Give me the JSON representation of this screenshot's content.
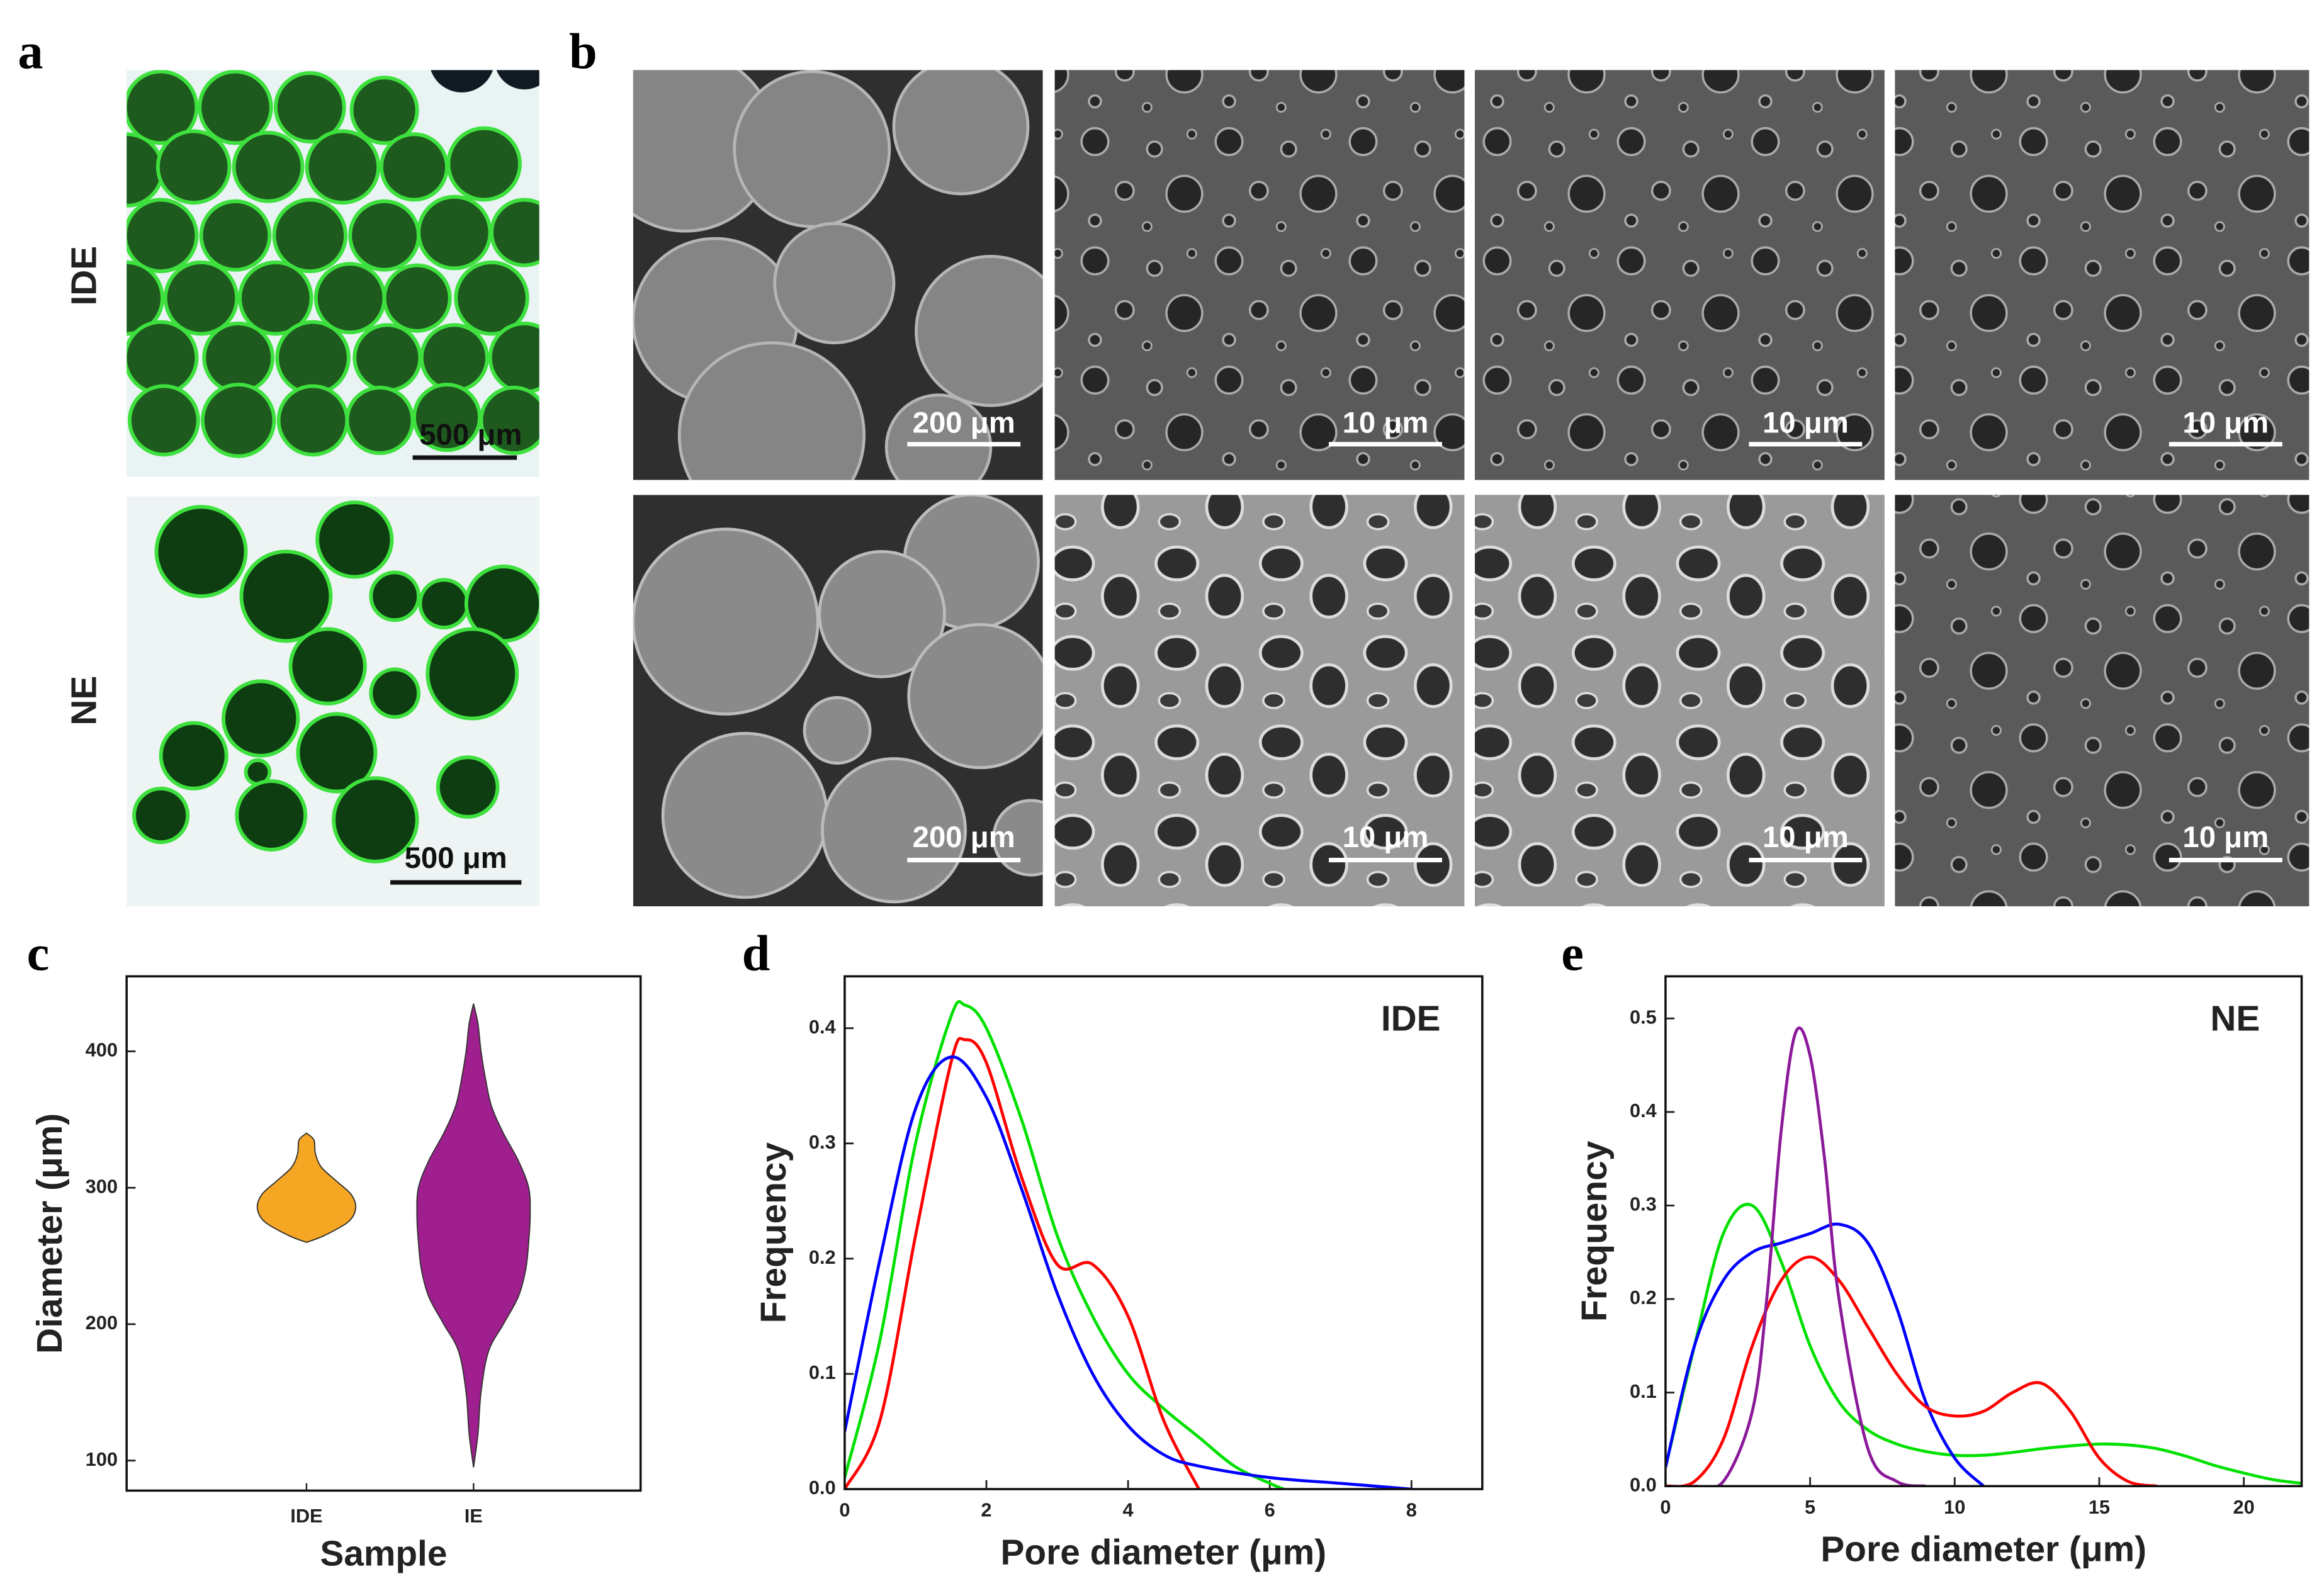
{
  "panels": {
    "a": {
      "label": "a",
      "rows": [
        "IDE",
        "NE"
      ],
      "scale_bars": [
        "500 μm",
        "500 μm"
      ]
    },
    "b": {
      "label": "b",
      "scale_bars": [
        [
          "200 μm",
          "10 μm",
          "10 μm",
          "10 μm"
        ],
        [
          "200 μm",
          "10 μm",
          "10 μm",
          "10 μm"
        ]
      ]
    }
  },
  "chart_data": [
    {
      "type": "violin",
      "panel": "c",
      "xlabel": "Sample",
      "ylabel": "Diameter (μm)",
      "categories": [
        "IDE",
        "IE"
      ],
      "violins": [
        {
          "color": "#f5a623",
          "y": [
            260,
            265,
            275,
            285,
            295,
            305,
            315,
            325,
            335,
            340
          ],
          "density": [
            0,
            0.12,
            0.28,
            0.33,
            0.3,
            0.2,
            0.1,
            0.06,
            0.05,
            0
          ]
        },
        {
          "color": "#a01f8f",
          "y": [
            95,
            120,
            150,
            180,
            200,
            220,
            240,
            260,
            280,
            300,
            320,
            340,
            360,
            380,
            400,
            420,
            435
          ],
          "density": [
            0,
            0.03,
            0.05,
            0.1,
            0.2,
            0.3,
            0.35,
            0.37,
            0.38,
            0.37,
            0.3,
            0.2,
            0.12,
            0.08,
            0.05,
            0.03,
            0
          ]
        }
      ],
      "ylim": [
        78,
        455
      ],
      "yticks": [
        100,
        200,
        300,
        400
      ]
    },
    {
      "type": "line",
      "panel": "d",
      "annotation": "IDE",
      "xlabel": "Pore diameter (μm)",
      "ylabel": "Frequency",
      "series": [
        {
          "color": "#00e000",
          "x": [
            0,
            0.5,
            1,
            1.5,
            1.7,
            2,
            2.5,
            3,
            3.5,
            4,
            4.5,
            5,
            5.5,
            6,
            6.2
          ],
          "values": [
            0.01,
            0.13,
            0.3,
            0.41,
            0.42,
            0.4,
            0.32,
            0.22,
            0.15,
            0.1,
            0.07,
            0.045,
            0.02,
            0.005,
            0
          ]
        },
        {
          "color": "#ff0000",
          "x": [
            0,
            0.5,
            1,
            1.5,
            1.7,
            2,
            2.5,
            3,
            3.5,
            4,
            4.5,
            5
          ],
          "values": [
            0,
            0.06,
            0.22,
            0.37,
            0.39,
            0.37,
            0.27,
            0.195,
            0.195,
            0.15,
            0.06,
            0
          ]
        },
        {
          "color": "#0000ff",
          "x": [
            0,
            0.5,
            1,
            1.5,
            2,
            2.5,
            3,
            3.5,
            4,
            4.5,
            5,
            6,
            7,
            8
          ],
          "values": [
            0.05,
            0.2,
            0.33,
            0.375,
            0.34,
            0.26,
            0.17,
            0.1,
            0.055,
            0.03,
            0.02,
            0.01,
            0.005,
            0
          ]
        }
      ],
      "xlim": [
        0,
        9
      ],
      "xticks": [
        0,
        2,
        4,
        6,
        8
      ],
      "ylim": [
        0,
        0.445
      ],
      "yticks": [
        {
          "value": 0,
          "label": "0.0"
        },
        0.1,
        0.2,
        0.3,
        0.4
      ]
    },
    {
      "type": "line",
      "panel": "e",
      "annotation": "NE",
      "xlabel": "Pore diameter (μm)",
      "ylabel": "Frequency",
      "series": [
        {
          "color": "#00e000",
          "x": [
            0,
            1,
            2,
            3,
            4,
            5,
            6,
            7,
            8,
            9,
            10,
            11,
            12,
            13,
            14,
            15,
            16,
            17,
            18,
            19,
            20,
            21,
            22
          ],
          "values": [
            0.02,
            0.15,
            0.27,
            0.3,
            0.24,
            0.15,
            0.09,
            0.06,
            0.045,
            0.037,
            0.033,
            0.033,
            0.036,
            0.04,
            0.043,
            0.045,
            0.044,
            0.04,
            0.032,
            0.022,
            0.014,
            0.007,
            0.003
          ]
        },
        {
          "color": "#0000ff",
          "x": [
            0,
            1,
            2,
            3,
            4,
            5,
            6,
            7,
            8,
            9,
            10,
            11
          ],
          "values": [
            0.02,
            0.15,
            0.22,
            0.25,
            0.26,
            0.27,
            0.28,
            0.26,
            0.19,
            0.09,
            0.03,
            0
          ]
        },
        {
          "color": "#ff0000",
          "x": [
            0,
            1,
            2,
            3,
            4,
            5,
            6,
            7,
            8,
            9,
            10,
            11,
            12,
            13,
            14,
            15,
            16,
            17
          ],
          "values": [
            0,
            0.005,
            0.05,
            0.15,
            0.22,
            0.245,
            0.22,
            0.17,
            0.12,
            0.085,
            0.075,
            0.08,
            0.1,
            0.11,
            0.08,
            0.03,
            0.005,
            0
          ]
        },
        {
          "color": "#8b1a9a",
          "x": [
            1,
            2,
            3,
            3.5,
            4,
            4.5,
            5,
            5.5,
            6,
            7,
            8,
            9
          ],
          "values": [
            0,
            0.005,
            0.08,
            0.2,
            0.38,
            0.485,
            0.46,
            0.35,
            0.2,
            0.04,
            0.005,
            0
          ]
        }
      ],
      "xlim": [
        0,
        22
      ],
      "xticks": [
        0,
        5,
        10,
        15,
        20
      ],
      "ylim": [
        0,
        0.545
      ],
      "yticks": [
        {
          "value": 0,
          "label": "0.0"
        },
        0.1,
        0.2,
        0.3,
        0.4,
        0.5
      ]
    }
  ]
}
